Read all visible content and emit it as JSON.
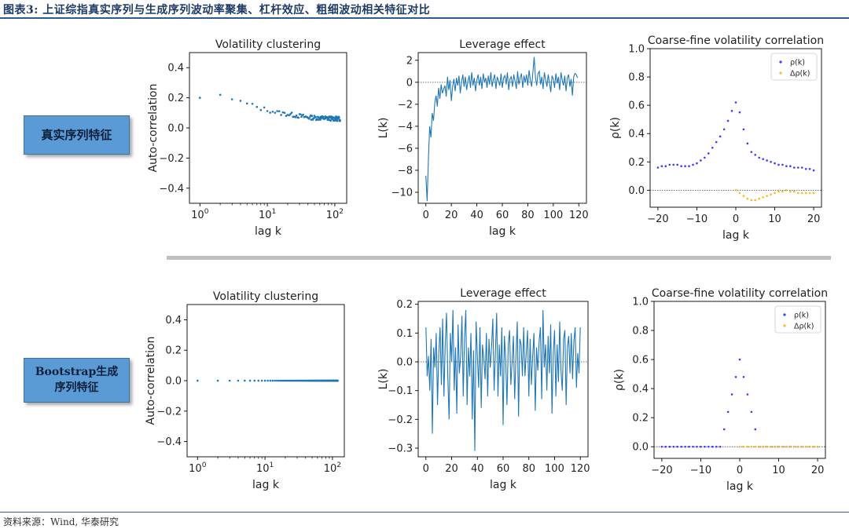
{
  "figure_title": "图表3:  上证综指真实序列与生成序列波动率聚集、杠杆效应、粗细波动相关特征对比",
  "source": "资料来源：Wind, 华泰研究",
  "rows": {
    "real": "真实序列特征",
    "bootstrap_line1": "Bootstrap生成",
    "bootstrap_line2": "序列特征"
  },
  "chart_data": [
    {
      "id": "real-vol",
      "type": "scatter",
      "xscale": "log",
      "title": "Volatility clustering",
      "xlabel": "lag k",
      "ylabel": "Auto-correlation",
      "xlim": [
        0.7,
        150
      ],
      "ylim": [
        -0.5,
        0.5
      ],
      "yticks": [
        0.4,
        0.2,
        0.0,
        -0.2,
        -0.4
      ],
      "ytick_labels": [
        "0.4",
        "0.2",
        "0.0",
        "−0.2",
        "−0.4"
      ],
      "xticks": [
        1,
        10,
        100
      ],
      "xtick_labels": [
        "10",
        "10",
        "10"
      ],
      "xtick_exps": [
        "0",
        "1",
        "2"
      ],
      "anchors": [
        [
          1,
          0.2
        ],
        [
          2,
          0.22
        ],
        [
          3,
          0.19
        ],
        [
          5,
          0.16
        ],
        [
          8,
          0.13
        ],
        [
          15,
          0.1
        ],
        [
          25,
          0.085
        ],
        [
          40,
          0.07
        ],
        [
          120,
          0.06
        ]
      ],
      "noise": 0.015,
      "color": "#1f77b4"
    },
    {
      "id": "real-lev",
      "type": "line",
      "title": "Leverage effect",
      "xlabel": "lag k",
      "ylabel": "L(k)",
      "xlim": [
        -6,
        126
      ],
      "ylim": [
        -11,
        2.7
      ],
      "yticks": [
        2,
        0,
        -2,
        -4,
        -6,
        -8,
        -10
      ],
      "ytick_labels": [
        "2",
        "0",
        "−2",
        "−4",
        "−6",
        "−8",
        "−10"
      ],
      "xticks": [
        0,
        20,
        40,
        60,
        80,
        100,
        120
      ],
      "xtick_labels": [
        "0",
        "20",
        "40",
        "60",
        "80",
        "100",
        "120"
      ],
      "hline": 0,
      "values": [
        -8.5,
        -10.8,
        -7.0,
        -4.0,
        -5.0,
        -2.8,
        -3.5,
        -1.9,
        -1.2,
        -2.2,
        -0.5,
        -1.5,
        -0.2,
        -1.0,
        -0.6,
        -0.3,
        -1.3,
        0.5,
        -0.7,
        0.2,
        -1.7,
        -0.4,
        0.3,
        -0.8,
        0.4,
        -0.3,
        0.6,
        -1.0,
        0.0,
        0.7,
        -0.4,
        0.5,
        -0.7,
        0.1,
        0.6,
        -0.5,
        0.9,
        -0.3,
        0.4,
        -0.8,
        0.2,
        0.7,
        -0.3,
        0.5,
        -0.6,
        0.8,
        0.0,
        0.4,
        -0.5,
        0.6,
        -0.2,
        0.9,
        -0.4,
        0.3,
        0.7,
        -0.6,
        0.5,
        0.1,
        -0.3,
        0.8,
        -0.5,
        0.4,
        0.6,
        -0.2,
        0.9,
        -0.7,
        0.3,
        0.5,
        -0.4,
        0.7,
        0.1,
        -0.6,
        1.0,
        -0.2,
        0.4,
        0.8,
        -0.5,
        0.6,
        0.0,
        0.7,
        -0.3,
        1.1,
        0.2,
        -0.4,
        0.9,
        2.3,
        0.4,
        -0.3,
        0.8,
        1.0,
        -0.2,
        0.5,
        -0.6,
        0.9,
        0.2,
        -0.4,
        0.7,
        0.0,
        -0.9,
        0.6,
        0.3,
        -0.5,
        0.8,
        -0.1,
        0.5,
        -0.7,
        0.9,
        0.2,
        -0.3,
        0.6,
        -0.8,
        0.4,
        0.7,
        -0.4,
        0.3,
        -1.2,
        0.5,
        0.8,
        0.7,
        0.4
      ],
      "color": "#1f77b4"
    },
    {
      "id": "real-cf",
      "type": "scatter",
      "title": "Coarse-fine volatility correlation",
      "xlabel": "lag k",
      "ylabel": "ρ(k)",
      "xlim": [
        -22,
        22
      ],
      "ylim": [
        -0.12,
        1.0
      ],
      "yticks": [
        1.0,
        0.8,
        0.6,
        0.4,
        0.2,
        0.0
      ],
      "ytick_labels": [
        "1.0",
        "0.8",
        "0.6",
        "0.4",
        "0.2",
        "0.0"
      ],
      "xticks": [
        -20,
        -10,
        0,
        10,
        20
      ],
      "xtick_labels": [
        "−20",
        "−10",
        "0",
        "10",
        "20"
      ],
      "hline": 0,
      "legend": [
        "ρ(k)",
        "Δρ(k)"
      ],
      "legend_position": "top-right",
      "series": [
        {
          "name": "ρ(k)",
          "color": "#3b3bff",
          "x": [
            -20,
            -19,
            -18,
            -17,
            -16,
            -15,
            -14,
            -13,
            -12,
            -11,
            -10,
            -9,
            -8,
            -7,
            -6,
            -5,
            -4,
            -3,
            -2,
            -1,
            0,
            1,
            2,
            3,
            4,
            5,
            6,
            7,
            8,
            9,
            10,
            11,
            12,
            13,
            14,
            15,
            16,
            17,
            18,
            19,
            20
          ],
          "y": [
            0.16,
            0.17,
            0.17,
            0.18,
            0.18,
            0.18,
            0.17,
            0.17,
            0.17,
            0.18,
            0.19,
            0.21,
            0.23,
            0.26,
            0.3,
            0.34,
            0.38,
            0.43,
            0.49,
            0.56,
            0.62,
            0.55,
            0.43,
            0.33,
            0.27,
            0.25,
            0.23,
            0.22,
            0.21,
            0.2,
            0.19,
            0.18,
            0.18,
            0.17,
            0.17,
            0.16,
            0.16,
            0.16,
            0.15,
            0.15,
            0.14
          ]
        },
        {
          "name": "Δρ(k)",
          "color": "#ffb627",
          "x": [
            0,
            1,
            2,
            3,
            4,
            5,
            6,
            7,
            8,
            9,
            10,
            11,
            12,
            13,
            14,
            15,
            16,
            17,
            18,
            19,
            20
          ],
          "y": [
            0.0,
            -0.02,
            -0.04,
            -0.06,
            -0.07,
            -0.07,
            -0.06,
            -0.05,
            -0.04,
            -0.03,
            -0.02,
            -0.01,
            -0.01,
            0.0,
            -0.01,
            -0.01,
            -0.02,
            -0.02,
            -0.02,
            -0.02,
            -0.02
          ]
        }
      ]
    },
    {
      "id": "boot-vol",
      "type": "scatter",
      "xscale": "log",
      "title": "Volatility clustering",
      "xlabel": "lag k",
      "ylabel": "Auto-correlation",
      "xlim": [
        0.7,
        150
      ],
      "ylim": [
        -0.5,
        0.5
      ],
      "yticks": [
        0.4,
        0.2,
        0.0,
        -0.2,
        -0.4
      ],
      "ytick_labels": [
        "0.4",
        "0.2",
        "0.0",
        "−0.2",
        "−0.4"
      ],
      "xticks": [
        1,
        10,
        100
      ],
      "xtick_labels": [
        "10",
        "10",
        "10"
      ],
      "xtick_exps": [
        "0",
        "1",
        "2"
      ],
      "anchors": [
        [
          1,
          0.0
        ],
        [
          120,
          0.0
        ]
      ],
      "noise": 0.0,
      "color": "#1f77b4"
    },
    {
      "id": "boot-lev",
      "type": "line",
      "title": "Leverage effect",
      "xlabel": "lag k",
      "ylabel": "L(k)",
      "xlim": [
        -6,
        126
      ],
      "ylim": [
        -0.33,
        0.21
      ],
      "yticks": [
        0.2,
        0.1,
        0.0,
        -0.1,
        -0.2,
        -0.3
      ],
      "ytick_labels": [
        "0.2",
        "0.1",
        "0.0",
        "−0.1",
        "−0.2",
        "−0.3"
      ],
      "xticks": [
        0,
        20,
        40,
        60,
        80,
        100,
        120
      ],
      "xtick_labels": [
        "0",
        "20",
        "40",
        "60",
        "80",
        "100",
        "120"
      ],
      "hline": 0,
      "values": [
        0.12,
        -0.05,
        0.02,
        -0.1,
        0.08,
        -0.25,
        0.05,
        -0.02,
        0.1,
        -0.15,
        0.03,
        0.12,
        -0.08,
        0.15,
        -0.12,
        0.06,
        0.17,
        -0.05,
        -0.2,
        0.1,
        0.0,
        0.18,
        -0.1,
        0.05,
        -0.18,
        0.13,
        -0.04,
        0.02,
        0.16,
        -0.12,
        0.08,
        0.18,
        -0.15,
        0.05,
        -0.05,
        0.1,
        -0.2,
        0.04,
        -0.31,
        0.14,
        0.02,
        -0.09,
        0.12,
        -0.16,
        0.06,
        0.01,
        -0.06,
        0.1,
        -0.12,
        0.08,
        -0.02,
        0.05,
        0.15,
        -0.1,
        0.03,
        0.17,
        -0.12,
        0.06,
        -0.05,
        0.12,
        -0.22,
        0.09,
        0.01,
        -0.15,
        0.06,
        0.11,
        -0.08,
        0.0,
        0.09,
        -0.13,
        0.02,
        0.14,
        -0.19,
        0.08,
        0.06,
        -0.05,
        0.12,
        -0.05,
        0.03,
        0.11,
        -0.12,
        0.08,
        -0.08,
        0.02,
        0.1,
        -0.17,
        0.05,
        -0.03,
        0.07,
        0.12,
        -0.13,
        0.18,
        -0.02,
        0.06,
        -0.1,
        0.09,
        -0.04,
        0.13,
        -0.18,
        0.03,
        0.11,
        -0.12,
        0.06,
        -0.07,
        0.14,
        -0.03,
        -0.1,
        0.08,
        0.11,
        -0.15,
        0.05,
        0.09,
        -0.04,
        0.1,
        -0.06,
        0.07,
        0.12,
        -0.09,
        0.03,
        -0.04,
        0.12
      ],
      "color": "#1f77b4"
    },
    {
      "id": "boot-cf",
      "type": "scatter",
      "title": "Coarse-fine volatility correlation",
      "xlabel": "lag k",
      "ylabel": "ρ(k)",
      "xlim": [
        -22,
        22
      ],
      "ylim": [
        -0.08,
        1.0
      ],
      "yticks": [
        1.0,
        0.8,
        0.6,
        0.4,
        0.2,
        0.0
      ],
      "ytick_labels": [
        "1.0",
        "0.8",
        "0.6",
        "0.4",
        "0.2",
        "0.0"
      ],
      "xticks": [
        -20,
        -10,
        0,
        10,
        20
      ],
      "xtick_labels": [
        "−20",
        "−10",
        "0",
        "10",
        "20"
      ],
      "hline": 0,
      "legend": [
        "ρ(k)",
        "Δρ(k)"
      ],
      "legend_position": "top-right",
      "series": [
        {
          "name": "ρ(k)",
          "color": "#3b3bff",
          "x": [
            -20,
            -19,
            -18,
            -17,
            -16,
            -15,
            -14,
            -13,
            -12,
            -11,
            -10,
            -9,
            -8,
            -7,
            -6,
            -5,
            -4,
            -3,
            -2,
            -1,
            0,
            1,
            2,
            3,
            4,
            5,
            6,
            7,
            8,
            9,
            10,
            11,
            12,
            13,
            14,
            15,
            16,
            17,
            18,
            19,
            20
          ],
          "y": [
            0.0,
            0.0,
            0.0,
            0.0,
            0.0,
            0.0,
            0.0,
            0.0,
            0.0,
            0.0,
            0.0,
            0.0,
            0.0,
            0.0,
            0.0,
            0.0,
            0.12,
            0.24,
            0.36,
            0.48,
            0.6,
            0.48,
            0.36,
            0.24,
            0.12,
            0.0,
            0.0,
            0.0,
            0.0,
            0.0,
            0.0,
            0.0,
            0.0,
            0.0,
            0.0,
            0.0,
            0.0,
            0.0,
            0.0,
            0.0,
            0.0
          ]
        },
        {
          "name": "Δρ(k)",
          "color": "#ffb627",
          "x": [
            0,
            1,
            2,
            3,
            4,
            5,
            6,
            7,
            8,
            9,
            10,
            11,
            12,
            13,
            14,
            15,
            16,
            17,
            18,
            19,
            20
          ],
          "y": [
            0.0,
            0.0,
            0.0,
            0.0,
            0.0,
            0.0,
            0.0,
            0.0,
            0.0,
            0.0,
            0.0,
            0.0,
            0.0,
            0.0,
            0.0,
            0.0,
            0.0,
            0.0,
            0.0,
            0.0,
            0.0
          ]
        }
      ]
    }
  ]
}
